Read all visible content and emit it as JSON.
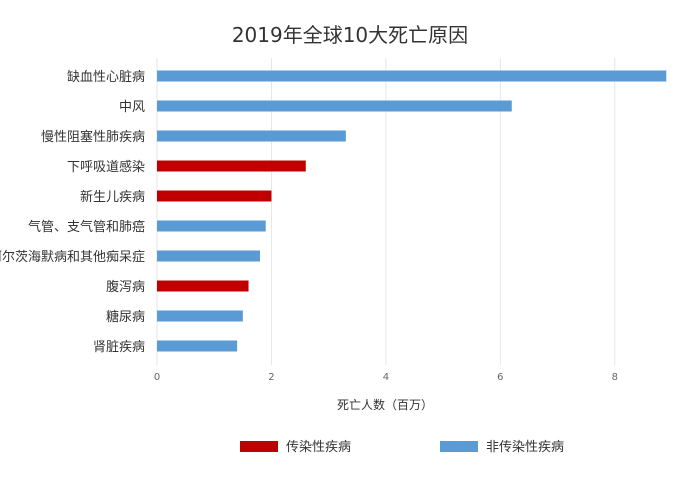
{
  "chart_data": {
    "type": "bar",
    "orientation": "horizontal",
    "title": "2019年全球10大死亡原因",
    "xlabel": "死亡人数（百万）",
    "ylabel": "",
    "xlim": [
      0,
      9
    ],
    "xticks": [
      0,
      2,
      4,
      6,
      8
    ],
    "grid": true,
    "legend_position": "bottom",
    "categories": [
      "缺血性心脏病",
      "中风",
      "慢性阻塞性肺疾病",
      "下呼吸道感染",
      "新生儿疾病",
      "气管、支气管和肺癌",
      "阿尔茨海默病和其他痴呆症",
      "腹泻病",
      "糖尿病",
      "肾脏疾病"
    ],
    "values": [
      8.9,
      6.2,
      3.3,
      2.6,
      2.0,
      1.9,
      1.8,
      1.6,
      1.5,
      1.4
    ],
    "groups": [
      "non-communicable",
      "non-communicable",
      "non-communicable",
      "communicable",
      "communicable",
      "non-communicable",
      "non-communicable",
      "communicable",
      "non-communicable",
      "non-communicable"
    ],
    "legend": [
      {
        "key": "communicable",
        "label": "传染性疾病",
        "color": "#c00000"
      },
      {
        "key": "non-communicable",
        "label": "非传染性疾病",
        "color": "#5b9bd5"
      }
    ]
  }
}
